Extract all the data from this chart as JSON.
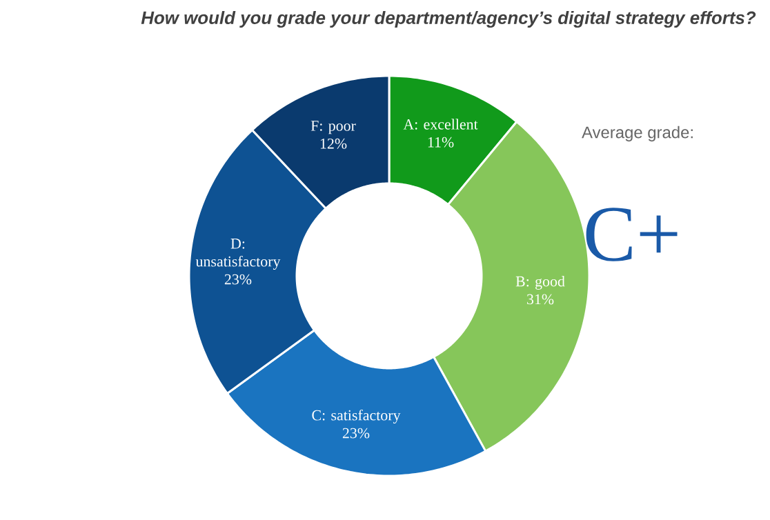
{
  "chart_data": {
    "type": "donut",
    "title": "How would you grade your department/agency’s digital strategy efforts?",
    "categories": [
      "A: excellent",
      "B: good",
      "C: satisfactory",
      "D: unsatisfactory",
      "F: poor"
    ],
    "values": [
      11,
      31,
      23,
      23,
      12
    ],
    "value_labels": [
      "11%",
      "31%",
      "23%",
      "23%",
      "12%"
    ],
    "colors": [
      "#119a1b",
      "#86c65a",
      "#1a74c0",
      "#0e5293",
      "#0a3a6e"
    ],
    "annotations": [
      "Average grade:",
      "C+"
    ]
  }
}
